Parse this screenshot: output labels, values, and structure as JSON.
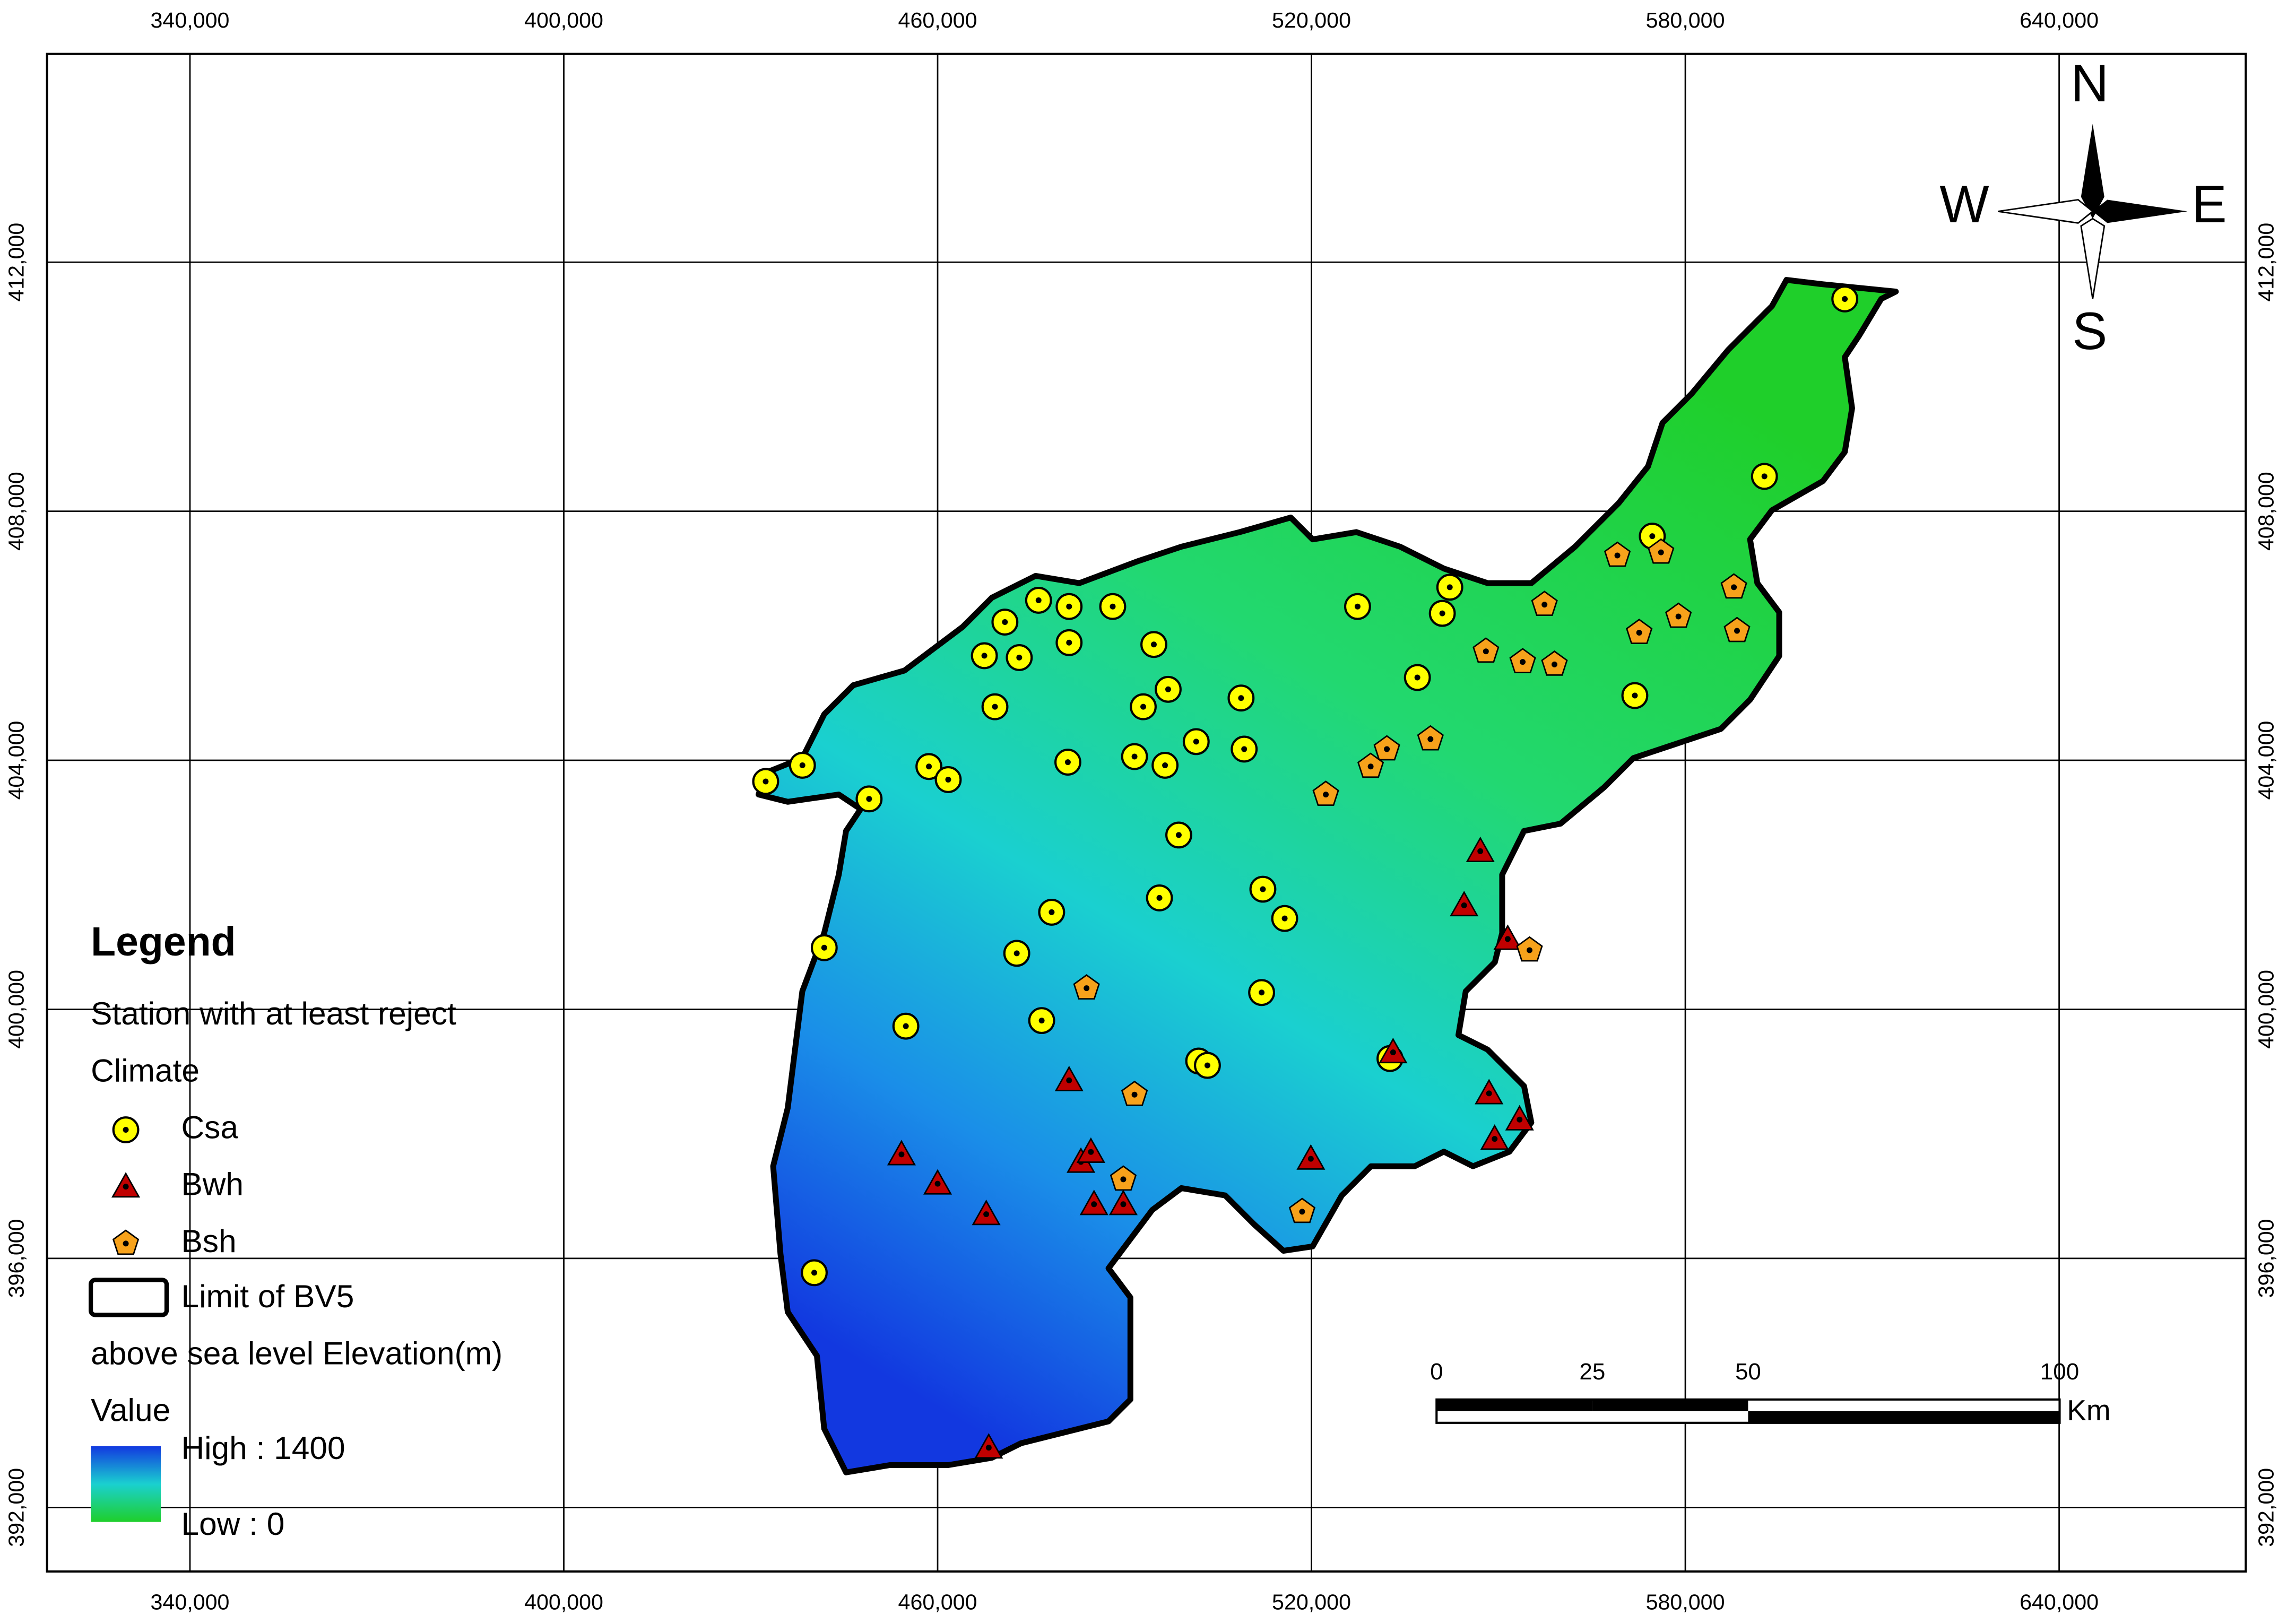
{
  "chart_data": {
    "type": "map",
    "xlim": [
      317065,
      669955
    ],
    "ylim": [
      390971,
      415345
    ],
    "grid": true,
    "xticks": [
      {
        "value": 340000,
        "label": "340,000"
      },
      {
        "value": 400000,
        "label": "400,000"
      },
      {
        "value": 460000,
        "label": "460,000"
      },
      {
        "value": 520000,
        "label": "520,000"
      },
      {
        "value": 580000,
        "label": "580,000"
      },
      {
        "value": 640000,
        "label": "640,000"
      }
    ],
    "yticks": [
      {
        "value": 392000,
        "label": "392,000"
      },
      {
        "value": 396000,
        "label": "396,000"
      },
      {
        "value": 400000,
        "label": "400,000"
      },
      {
        "value": 404000,
        "label": "404,000"
      },
      {
        "value": 408000,
        "label": "408,000"
      },
      {
        "value": 412000,
        "label": "412,000"
      }
    ],
    "series": [
      {
        "name": "Csa",
        "color": "#ffff00",
        "marker": "circle",
        "x": [
          605600,
          592700,
          574700,
          571900,
          542200,
          541000,
          527400,
          537000,
          488100,
          481100,
          476200,
          470800,
          481100,
          473100,
          467500,
          494700,
          497000,
          493000,
          469200,
          508700,
          501500,
          509200,
          491600,
          496500,
          480900,
          458600,
          461700,
          438300,
          432400,
          449000,
          498700,
          512200,
          495600,
          515700,
          478300,
          441800,
          472700,
          512000,
          476700,
          454900,
          501900,
          503300,
          532600,
          440200
        ],
        "y": [
          411410,
          408560,
          407600,
          405040,
          406780,
          406360,
          406470,
          405330,
          406470,
          406470,
          406570,
          406220,
          405890,
          405650,
          405680,
          405860,
          405140,
          404860,
          404860,
          405000,
          404300,
          404180,
          404060,
          403920,
          403970,
          403900,
          403690,
          403920,
          403660,
          403380,
          402800,
          401930,
          401790,
          401460,
          401560,
          400990,
          400900,
          400270,
          399820,
          399730,
          399170,
          399100,
          399210,
          395770
        ]
      },
      {
        "name": "Bwh",
        "color": "#c00000",
        "marker": "triangle",
        "x": [
          547100,
          544500,
          551500,
          533100,
          548500,
          553400,
          549400,
          481100,
          454200,
          460000,
          467800,
          483000,
          484600,
          485100,
          489800,
          519900,
          468200
        ],
        "y": [
          402540,
          401670,
          401130,
          399310,
          398650,
          398230,
          397920,
          398860,
          397670,
          397200,
          396710,
          397550,
          397710,
          396870,
          396870,
          397600,
          392960
        ]
      },
      {
        "name": "Bsh",
        "color": "#f7a21b",
        "marker": "pentagon",
        "x": [
          569100,
          576100,
          587800,
          557400,
          572600,
          578900,
          588300,
          548000,
          553900,
          559000,
          539100,
          532100,
          529500,
          522300,
          555000,
          483900,
          491600,
          489800,
          518500
        ],
        "y": [
          407290,
          407340,
          406780,
          406500,
          406050,
          406310,
          406080,
          405750,
          405580,
          405540,
          404340,
          404180,
          403900,
          403450,
          400950,
          400340,
          398630,
          397270,
          396750
        ]
      }
    ],
    "legend": {
      "title": "Legend",
      "layer": "Station with at least reject",
      "field": "Climate",
      "boundary": "Limit of BV5",
      "raster": "above sea level  Elevation(m)",
      "raster_field": "Value",
      "high": "High : 1400",
      "low": "Low : 0"
    },
    "scale_bar": {
      "ticks": [
        0,
        25,
        50,
        100
      ],
      "unit": "Km"
    },
    "north_arrow": {
      "n": "N",
      "s": "S",
      "e": "E",
      "w": "W"
    }
  }
}
